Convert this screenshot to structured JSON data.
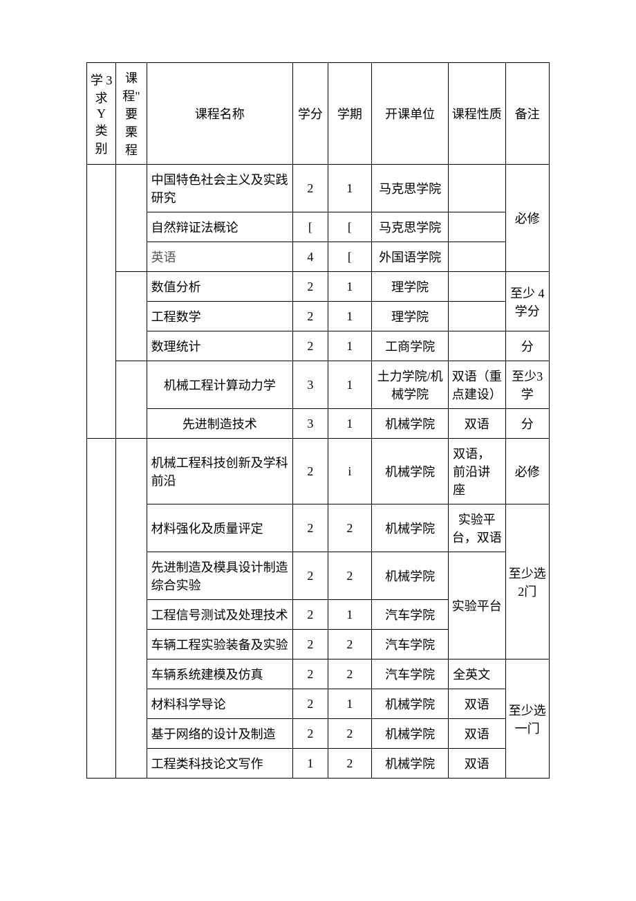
{
  "header": {
    "c1": "学 3 求 Y 类别",
    "c2": "课程\" 要 栗 程",
    "c3": "课程名称",
    "c4": "学分",
    "c5": "学期",
    "c6": "开课单位",
    "c7": "课程性质",
    "c8": "备注"
  },
  "rows": [
    {
      "name": "中国特色社会主义及实践研究",
      "credit": "2",
      "term": "1",
      "dept": "马克思学院",
      "nature": ""
    },
    {
      "name": "自然辩证法概论",
      "credit": "[",
      "term": "[",
      "dept": "马克思学院",
      "nature": ""
    },
    {
      "name": "英语",
      "credit": "4",
      "term": "[",
      "dept": "外国语学院",
      "nature": ""
    },
    {
      "name": "数值分析",
      "credit": "2",
      "term": "1",
      "dept": "理学院",
      "nature": ""
    },
    {
      "name": "工程数学",
      "credit": "2",
      "term": "1",
      "dept": "理学院",
      "nature": ""
    },
    {
      "name": "数理统计",
      "credit": "2",
      "term": "1",
      "dept": "工商学院",
      "nature": ""
    },
    {
      "name": "机械工程计算动力学",
      "credit": "3",
      "term": "1",
      "dept": "土力学院/机械学院",
      "nature": "双语（重点建设）"
    },
    {
      "name": "先进制造技术",
      "credit": "3",
      "term": "1",
      "dept": "机械学院",
      "nature": "双语"
    },
    {
      "name": "机械工程科技创新及学科前沿",
      "credit": "2",
      "term": "i",
      "dept": "机械学院",
      "nature": "双语，前沿讲座"
    },
    {
      "name": "材料强化及质量评定",
      "credit": "2",
      "term": "2",
      "dept": "机械学院",
      "nature": "实验平台，双语"
    },
    {
      "name": "先进制造及模具设计制造综合实验",
      "credit": "2",
      "term": "2",
      "dept": "机械学院",
      "nature": ""
    },
    {
      "name": "工程信号测试及处理技术",
      "credit": "2",
      "term": "1",
      "dept": "汽车学院",
      "nature": ""
    },
    {
      "name": "车辆工程实验装备及实验",
      "credit": "2",
      "term": "2",
      "dept": "汽车学院",
      "nature": ""
    },
    {
      "name": "车辆系统建模及仿真",
      "credit": "2",
      "term": "2",
      "dept": "汽车学院",
      "nature": "全英文"
    },
    {
      "name": "材料科学导论",
      "credit": "2",
      "term": "1",
      "dept": "机械学院",
      "nature": "双语"
    },
    {
      "name": "基于网络的设计及制造",
      "credit": "2",
      "term": "2",
      "dept": "机械学院",
      "nature": "双语"
    },
    {
      "name": "工程类科技论文写作",
      "credit": "1",
      "term": "2",
      "dept": "机械学院",
      "nature": "双语"
    }
  ],
  "notes": {
    "n1": "必修",
    "n2": "至少 4 学分",
    "n2b": "分",
    "n3a": "至少3 学",
    "n3b": "分",
    "n4": "必修",
    "n5": "至少选2门",
    "n6": "至少选一门",
    "exp": "实验平台"
  }
}
